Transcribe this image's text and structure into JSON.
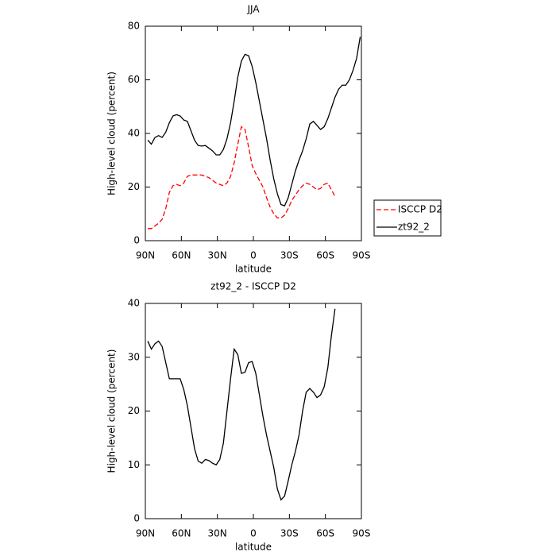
{
  "chart_data": [
    {
      "type": "line",
      "title": "JJA",
      "xlabel": "latitude",
      "ylabel": "High-level cloud (percent)",
      "x": [
        88,
        85,
        82,
        79,
        76,
        73,
        70,
        67,
        64,
        61,
        58,
        55,
        52,
        49,
        46,
        43,
        40,
        37,
        34,
        31,
        28,
        25,
        22,
        19,
        16,
        13,
        10,
        7,
        4,
        1,
        -2,
        -5,
        -8,
        -11,
        -14,
        -17,
        -20,
        -23,
        -26,
        -29,
        -32,
        -35,
        -38,
        -41,
        -44,
        -47,
        -50,
        -53,
        -56,
        -59,
        -62,
        -65,
        -68,
        -71,
        -74,
        -77,
        -80,
        -83,
        -86,
        -89
      ],
      "series": [
        {
          "name": "ISCCP D2",
          "color": "#ff0000",
          "linestyle": "dashed",
          "values": [
            4.5,
            4.5,
            5.5,
            6.5,
            8,
            12,
            18,
            20.5,
            21,
            20.5,
            21.5,
            24,
            24.5,
            24.5,
            24.5,
            24.5,
            24,
            23.5,
            22.5,
            21.5,
            21,
            20.5,
            21.5,
            24,
            29,
            36,
            42.5,
            41.5,
            35,
            28,
            25,
            22.5,
            20,
            16,
            12.5,
            10,
            8.5,
            8.5,
            9.5,
            12,
            15,
            17,
            19,
            20.5,
            21.5,
            21,
            20,
            19,
            19.5,
            21,
            21.5,
            19,
            16.5,
            null,
            null,
            null,
            null,
            null,
            null,
            null
          ]
        },
        {
          "name": "zt92_2",
          "color": "#000000",
          "linestyle": "solid",
          "values": [
            37.5,
            36,
            38.5,
            39.2,
            38.5,
            40.5,
            44,
            46.5,
            47,
            46.5,
            45,
            44.5,
            41,
            37.5,
            35.5,
            35.3,
            35.5,
            34.5,
            33.5,
            32,
            32,
            34,
            38,
            44,
            52,
            61,
            67,
            69.5,
            69,
            65,
            59,
            52,
            45,
            38,
            30,
            23,
            17.5,
            13.5,
            13,
            16,
            21,
            26,
            30,
            33.5,
            38,
            43.5,
            44.5,
            43,
            41.5,
            42.5,
            45.5,
            49.5,
            53.5,
            56.5,
            58,
            58,
            60,
            63.5,
            68,
            76
          ]
        }
      ],
      "xlim": [
        90,
        -90
      ],
      "xticks": [
        {
          "value": 90,
          "label": "90N"
        },
        {
          "value": 60,
          "label": "60N"
        },
        {
          "value": 30,
          "label": "30N"
        },
        0,
        {
          "value": -30,
          "label": "30S"
        },
        {
          "value": -60,
          "label": "60S"
        },
        {
          "value": -90,
          "label": "90S"
        }
      ],
      "ylim": [
        0,
        80
      ],
      "yticks": [
        0,
        20,
        40,
        60,
        80
      ],
      "legend": "right"
    },
    {
      "type": "line",
      "title": "zt92_2 - ISCCP D2",
      "xlabel": "latitude",
      "ylabel": "High-level cloud (percent)",
      "x": [
        88,
        85,
        82,
        79,
        76,
        73,
        70,
        67,
        64,
        61,
        58,
        55,
        52,
        49,
        46,
        43,
        40,
        37,
        34,
        31,
        28,
        25,
        22,
        19,
        16,
        13,
        10,
        7,
        4,
        1,
        -2,
        -5,
        -8,
        -11,
        -14,
        -17,
        -20,
        -23,
        -26,
        -29,
        -32,
        -35,
        -38,
        -41,
        -44,
        -47,
        -50,
        -53,
        -56,
        -59,
        -62,
        -65,
        -68
      ],
      "series": [
        {
          "color": "#000000",
          "linestyle": "solid",
          "values": [
            33,
            31.5,
            32.5,
            33,
            32,
            29,
            26,
            26,
            26,
            26,
            24,
            21,
            17,
            13,
            10.7,
            10.3,
            11,
            10.8,
            10.3,
            10,
            11,
            14,
            20,
            26,
            31.5,
            30.5,
            27,
            27.2,
            29,
            29.2,
            27,
            23,
            19,
            15.5,
            12.5,
            9.5,
            5.5,
            3.5,
            4.2,
            7,
            10,
            12.5,
            15.5,
            20,
            23.5,
            24.2,
            23.5,
            22.5,
            23,
            24.5,
            28,
            34,
            39
          ]
        }
      ],
      "xlim": [
        90,
        -90
      ],
      "xticks": [
        {
          "value": 90,
          "label": "90N"
        },
        {
          "value": 60,
          "label": "60N"
        },
        {
          "value": 30,
          "label": "30N"
        },
        0,
        {
          "value": -30,
          "label": "30S"
        },
        {
          "value": -60,
          "label": "60S"
        },
        {
          "value": -90,
          "label": "90S"
        }
      ],
      "ylim": [
        0,
        40
      ],
      "yticks": [
        0,
        10,
        20,
        30,
        40
      ]
    }
  ]
}
